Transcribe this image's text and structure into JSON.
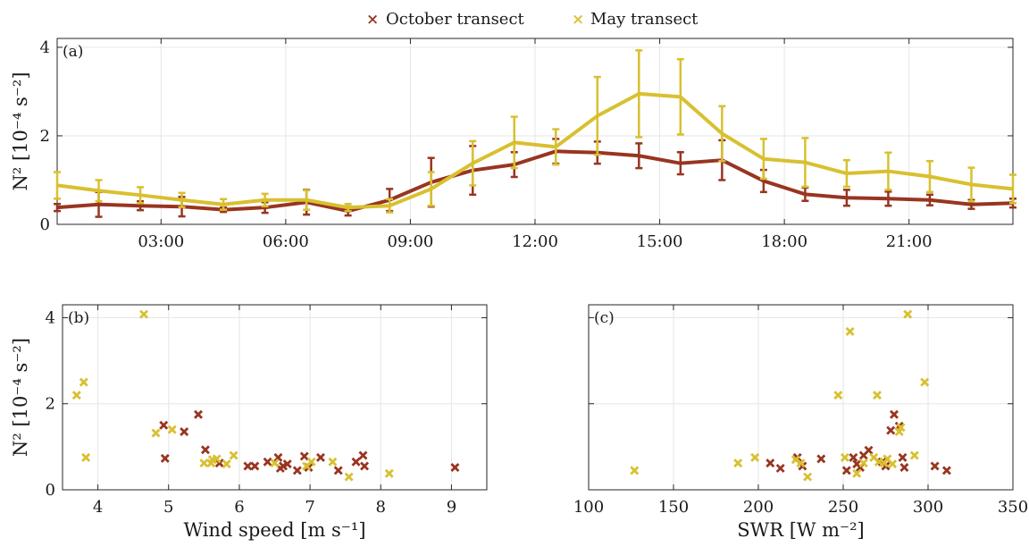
{
  "legend": {
    "series": [
      {
        "name": "October transect",
        "color": "#983520"
      },
      {
        "name": "May transect",
        "color": "#d8c030"
      }
    ]
  },
  "chart_data": [
    {
      "panel": "(a)",
      "type": "line",
      "ylabel": "N² [10⁻⁴ s⁻²]",
      "xlim": [
        0.5,
        23.5
      ],
      "ylim": [
        0,
        4.2
      ],
      "xticks": [
        3,
        6,
        9,
        12,
        15,
        18,
        21
      ],
      "xticklabels": [
        "03:00",
        "06:00",
        "09:00",
        "12:00",
        "15:00",
        "18:00",
        "21:00"
      ],
      "yticks": [
        0,
        2,
        4
      ],
      "grid": true,
      "x": [
        0.5,
        1.5,
        2.5,
        3.5,
        4.5,
        5.5,
        6.5,
        7.5,
        8.5,
        9.5,
        10.5,
        11.5,
        12.5,
        13.5,
        14.5,
        15.5,
        16.5,
        17.5,
        18.5,
        19.5,
        20.5,
        21.5,
        22.5,
        23.5
      ],
      "series": [
        {
          "name": "October transect",
          "color": "#983520",
          "values": [
            0.38,
            0.45,
            0.42,
            0.4,
            0.33,
            0.38,
            0.5,
            0.3,
            0.55,
            0.95,
            1.22,
            1.35,
            1.65,
            1.62,
            1.55,
            1.38,
            1.45,
            0.98,
            0.68,
            0.6,
            0.58,
            0.55,
            0.45,
            0.48
          ],
          "err": [
            0.08,
            0.28,
            0.1,
            0.22,
            0.05,
            0.12,
            0.28,
            0.1,
            0.25,
            0.55,
            0.55,
            0.28,
            0.28,
            0.25,
            0.28,
            0.25,
            0.45,
            0.25,
            0.15,
            0.18,
            0.16,
            0.12,
            0.1,
            0.1
          ]
        },
        {
          "name": "May transect",
          "color": "#d8c030",
          "values": [
            0.88,
            0.76,
            0.66,
            0.55,
            0.45,
            0.55,
            0.55,
            0.38,
            0.42,
            0.8,
            1.38,
            1.85,
            1.75,
            2.45,
            2.95,
            2.88,
            2.05,
            1.48,
            1.4,
            1.15,
            1.2,
            1.08,
            0.9,
            0.8
          ],
          "err": [
            0.3,
            0.24,
            0.18,
            0.16,
            0.12,
            0.14,
            0.22,
            0.08,
            0.15,
            0.38,
            0.5,
            0.58,
            0.4,
            0.88,
            0.98,
            0.85,
            0.62,
            0.45,
            0.55,
            0.3,
            0.42,
            0.35,
            0.38,
            0.32
          ]
        }
      ]
    },
    {
      "panel": "(b)",
      "type": "scatter",
      "xlabel": "Wind speed [m s⁻¹]",
      "ylabel": "N² [10⁻⁴ s⁻²]",
      "xlim": [
        3.5,
        9.5
      ],
      "ylim": [
        0,
        4.3
      ],
      "xticks": [
        4,
        5,
        6,
        7,
        8,
        9
      ],
      "yticks": [
        0,
        2,
        4
      ],
      "grid": true,
      "series": [
        {
          "name": "October transect",
          "color": "#983520",
          "points": [
            [
              4.93,
              1.5
            ],
            [
              4.95,
              0.73
            ],
            [
              5.22,
              1.35
            ],
            [
              5.42,
              1.75
            ],
            [
              5.52,
              0.93
            ],
            [
              5.72,
              0.62
            ],
            [
              6.12,
              0.55
            ],
            [
              6.22,
              0.55
            ],
            [
              6.4,
              0.65
            ],
            [
              6.55,
              0.75
            ],
            [
              6.62,
              0.55
            ],
            [
              6.68,
              0.6
            ],
            [
              6.58,
              0.5
            ],
            [
              6.82,
              0.45
            ],
            [
              6.92,
              0.78
            ],
            [
              6.98,
              0.52
            ],
            [
              7.15,
              0.75
            ],
            [
              7.4,
              0.45
            ],
            [
              7.65,
              0.65
            ],
            [
              7.75,
              0.8
            ],
            [
              7.77,
              0.55
            ],
            [
              9.05,
              0.52
            ]
          ]
        },
        {
          "name": "May transect",
          "color": "#d8c030",
          "points": [
            [
              3.7,
              2.2
            ],
            [
              3.8,
              2.5
            ],
            [
              3.83,
              0.75
            ],
            [
              4.65,
              4.08
            ],
            [
              4.82,
              1.32
            ],
            [
              5.05,
              1.4
            ],
            [
              5.5,
              0.62
            ],
            [
              5.6,
              0.62
            ],
            [
              5.68,
              0.72
            ],
            [
              5.62,
              0.7
            ],
            [
              5.82,
              0.6
            ],
            [
              5.92,
              0.8
            ],
            [
              6.5,
              0.62
            ],
            [
              6.95,
              0.55
            ],
            [
              7.02,
              0.65
            ],
            [
              7.32,
              0.65
            ],
            [
              7.55,
              0.3
            ],
            [
              8.12,
              0.38
            ]
          ]
        }
      ]
    },
    {
      "panel": "(c)",
      "type": "scatter",
      "xlabel": "SWR [W m⁻²]",
      "xlim": [
        100,
        350
      ],
      "ylim": [
        0,
        4.3
      ],
      "xticks": [
        100,
        150,
        200,
        250,
        300,
        350
      ],
      "yticks": [
        0,
        2,
        4
      ],
      "grid": true,
      "series": [
        {
          "name": "October transect",
          "color": "#983520",
          "points": [
            [
              207,
              0.62
            ],
            [
              213,
              0.5
            ],
            [
              223,
              0.75
            ],
            [
              226,
              0.55
            ],
            [
              237,
              0.72
            ],
            [
              252,
              0.45
            ],
            [
              256,
              0.75
            ],
            [
              258,
              0.6
            ],
            [
              260,
              0.52
            ],
            [
              262,
              0.8
            ],
            [
              265,
              0.92
            ],
            [
              273,
              0.65
            ],
            [
              275,
              0.55
            ],
            [
              278,
              1.38
            ],
            [
              280,
              1.75
            ],
            [
              283,
              1.48
            ],
            [
              285,
              0.75
            ],
            [
              286,
              0.52
            ],
            [
              304,
              0.55
            ],
            [
              311,
              0.45
            ]
          ]
        },
        {
          "name": "May transect",
          "color": "#d8c030",
          "points": [
            [
              127,
              0.45
            ],
            [
              188,
              0.62
            ],
            [
              198,
              0.75
            ],
            [
              222,
              0.7
            ],
            [
              225,
              0.62
            ],
            [
              229,
              0.3
            ],
            [
              247,
              2.2
            ],
            [
              251,
              0.75
            ],
            [
              254,
              3.68
            ],
            [
              258,
              0.38
            ],
            [
              262,
              0.62
            ],
            [
              268,
              0.75
            ],
            [
              270,
              2.2
            ],
            [
              271,
              0.65
            ],
            [
              274,
              0.62
            ],
            [
              276,
              0.72
            ],
            [
              279,
              0.6
            ],
            [
              283,
              1.35
            ],
            [
              284,
              1.45
            ],
            [
              288,
              4.08
            ],
            [
              292,
              0.8
            ],
            [
              298,
              2.5
            ]
          ]
        }
      ]
    }
  ]
}
